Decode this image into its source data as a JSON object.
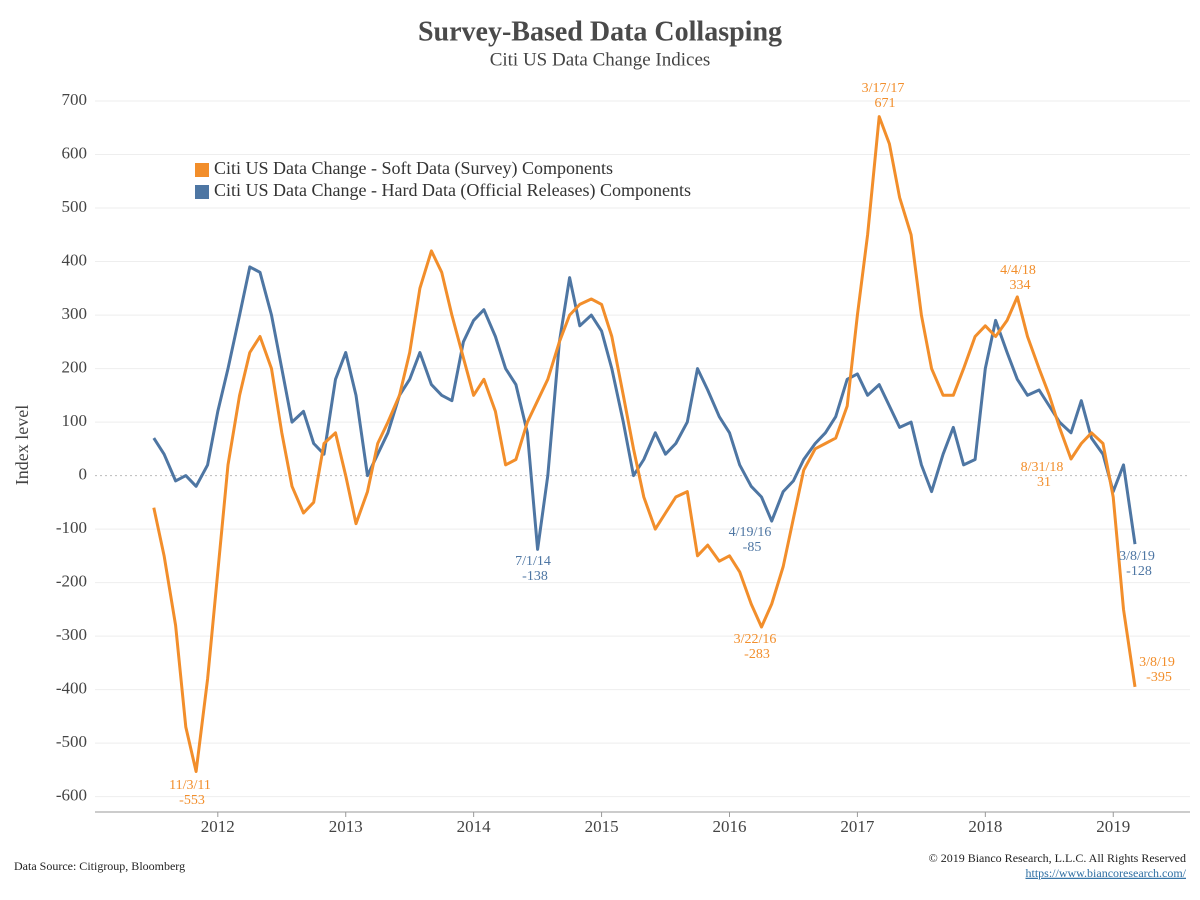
{
  "chart_data": {
    "type": "line",
    "title": "Survey-Based Data Collasping",
    "subtitle": "Citi US Data Change Indices",
    "y_label": "Index level",
    "source": "Data Source: Citigroup, Bloomberg",
    "copyright": "© 2019 Bianco Research, L.L.C. All Rights Reserved",
    "url": "https://www.biancoresearch.com/",
    "x": [
      2011.5,
      2011.58,
      2011.67,
      2011.75,
      2011.83,
      2011.92,
      2012.0,
      2012.08,
      2012.17,
      2012.25,
      2012.33,
      2012.42,
      2012.5,
      2012.58,
      2012.67,
      2012.75,
      2012.83,
      2012.92,
      2013.0,
      2013.08,
      2013.17,
      2013.25,
      2013.33,
      2013.42,
      2013.5,
      2013.58,
      2013.67,
      2013.75,
      2013.83,
      2013.92,
      2014.0,
      2014.08,
      2014.17,
      2014.25,
      2014.33,
      2014.42,
      2014.5,
      2014.58,
      2014.67,
      2014.75,
      2014.83,
      2014.92,
      2015.0,
      2015.08,
      2015.17,
      2015.25,
      2015.33,
      2015.42,
      2015.5,
      2015.58,
      2015.67,
      2015.75,
      2015.83,
      2015.92,
      2016.0,
      2016.08,
      2016.17,
      2016.25,
      2016.33,
      2016.42,
      2016.5,
      2016.58,
      2016.67,
      2016.75,
      2016.83,
      2016.92,
      2017.0,
      2017.08,
      2017.17,
      2017.25,
      2017.33,
      2017.42,
      2017.5,
      2017.58,
      2017.67,
      2017.75,
      2017.83,
      2017.92,
      2018.0,
      2018.08,
      2018.17,
      2018.25,
      2018.33,
      2018.42,
      2018.5,
      2018.58,
      2018.67,
      2018.75,
      2018.83,
      2018.92,
      2019.0,
      2019.08,
      2019.17
    ],
    "series": [
      {
        "name": "Citi US Data Change - Soft Data (Survey) Components",
        "color": "#f28e2b",
        "values": [
          -60,
          -150,
          -280,
          -470,
          -553,
          -380,
          -180,
          20,
          150,
          230,
          260,
          200,
          80,
          -20,
          -70,
          -50,
          60,
          80,
          0,
          -90,
          -30,
          60,
          100,
          150,
          230,
          350,
          420,
          380,
          300,
          220,
          150,
          180,
          120,
          20,
          30,
          100,
          140,
          180,
          250,
          300,
          320,
          330,
          320,
          260,
          150,
          50,
          -40,
          -100,
          -70,
          -40,
          -30,
          -150,
          -130,
          -160,
          -150,
          -180,
          -240,
          -283,
          -240,
          -170,
          -80,
          10,
          50,
          60,
          70,
          130,
          300,
          450,
          671,
          620,
          520,
          450,
          300,
          200,
          150,
          150,
          200,
          260,
          280,
          260,
          290,
          334,
          260,
          200,
          150,
          90,
          31,
          60,
          80,
          60,
          -40,
          -250,
          -395
        ]
      },
      {
        "name": "Citi US Data Change - Hard Data (Official Releases) Components",
        "color": "#4e76a3",
        "values": [
          70,
          40,
          -10,
          0,
          -20,
          20,
          120,
          200,
          300,
          390,
          380,
          300,
          200,
          100,
          120,
          60,
          40,
          180,
          230,
          150,
          0,
          40,
          80,
          150,
          180,
          230,
          170,
          150,
          140,
          250,
          290,
          310,
          260,
          200,
          170,
          80,
          -138,
          0,
          250,
          370,
          280,
          300,
          270,
          200,
          100,
          0,
          30,
          80,
          40,
          60,
          100,
          200,
          160,
          110,
          80,
          20,
          -20,
          -40,
          -85,
          -30,
          -10,
          30,
          60,
          80,
          110,
          180,
          190,
          150,
          170,
          130,
          90,
          100,
          20,
          -30,
          40,
          90,
          20,
          30,
          200,
          290,
          230,
          180,
          150,
          160,
          130,
          100,
          80,
          140,
          70,
          40,
          -30,
          20,
          -128
        ]
      }
    ],
    "annotations": [
      "11/3/11",
      "7/1/14",
      "4/19/16",
      "3/22/16",
      "3/17/17",
      "4/4/18",
      "8/31/18",
      "3/8/19",
      "3/8/19"
    ],
    "xlim": [
      2011.04,
      2019.6
    ],
    "xticks": [
      2012,
      2013,
      2014,
      2015,
      2016,
      2017,
      2018,
      2019
    ],
    "ylim": [
      -640,
      730
    ],
    "yticks": [
      -600,
      -500,
      -400,
      -300,
      -200,
      -100,
      0,
      100,
      200,
      300,
      400,
      500,
      600,
      700
    ],
    "grid": true,
    "legend": "upper left"
  }
}
